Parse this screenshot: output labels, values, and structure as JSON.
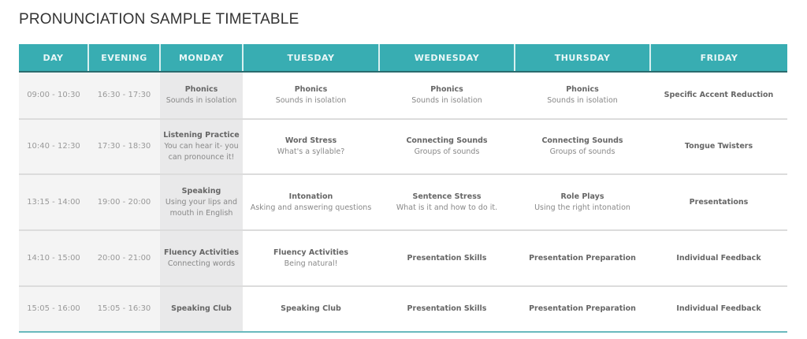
{
  "title": "PRONUNCIATION SAMPLE TIMETABLE",
  "colors": {
    "header": "#38adb2",
    "time_bg": "#f4f4f4",
    "monday_bg": "#e9e9ea"
  },
  "headers": [
    "DAY",
    "EVENING",
    "MONDAY",
    "TUESDAY",
    "WEDNESDAY",
    "THURSDAY",
    "FRIDAY"
  ],
  "rows": [
    {
      "day": "09:00 - 10:30",
      "evening": "16:30 - 17:30",
      "cells": [
        {
          "t": "Phonics",
          "s": "Sounds in isolation"
        },
        {
          "t": "Phonics",
          "s": "Sounds in isolation"
        },
        {
          "t": "Phonics",
          "s": "Sounds in isolation"
        },
        {
          "t": "Phonics",
          "s": "Sounds in isolation"
        },
        {
          "t": "Specific Accent Reduction",
          "s": ""
        }
      ]
    },
    {
      "day": "10:40 - 12:30",
      "evening": "17:30 - 18:30",
      "cells": [
        {
          "t": "Listening Practice",
          "s": "You can hear it- you can pronounce it!"
        },
        {
          "t": "Word Stress",
          "s": "What's a syllable?"
        },
        {
          "t": "Connecting Sounds",
          "s": "Groups of sounds"
        },
        {
          "t": "Connecting Sounds",
          "s": "Groups of sounds"
        },
        {
          "t": "Tongue Twisters",
          "s": ""
        }
      ]
    },
    {
      "day": "13:15 - 14:00",
      "evening": "19:00 - 20:00",
      "cells": [
        {
          "t": "Speaking",
          "s": "Using your lips and mouth in English"
        },
        {
          "t": "Intonation",
          "s": "Asking and answering questions"
        },
        {
          "t": "Sentence Stress",
          "s": "What is it and how to do it."
        },
        {
          "t": "Role Plays",
          "s": "Using the right intonation"
        },
        {
          "t": "Presentations",
          "s": ""
        }
      ]
    },
    {
      "day": "14:10 - 15:00",
      "evening": "20:00 - 21:00",
      "cells": [
        {
          "t": "Fluency Activities",
          "s": "Connecting words"
        },
        {
          "t": "Fluency Activities",
          "s": "Being natural!"
        },
        {
          "t": "Presentation Skills",
          "s": ""
        },
        {
          "t": "Presentation Preparation",
          "s": ""
        },
        {
          "t": "Individual Feedback",
          "s": ""
        }
      ]
    },
    {
      "day": "15:05 - 16:00",
      "evening": "15:05 - 16:30",
      "cells": [
        {
          "t": "Speaking Club",
          "s": ""
        },
        {
          "t": "Speaking Club",
          "s": ""
        },
        {
          "t": "Presentation Skills",
          "s": ""
        },
        {
          "t": "Presentation Preparation",
          "s": ""
        },
        {
          "t": "Individual Feedback",
          "s": ""
        }
      ]
    }
  ]
}
